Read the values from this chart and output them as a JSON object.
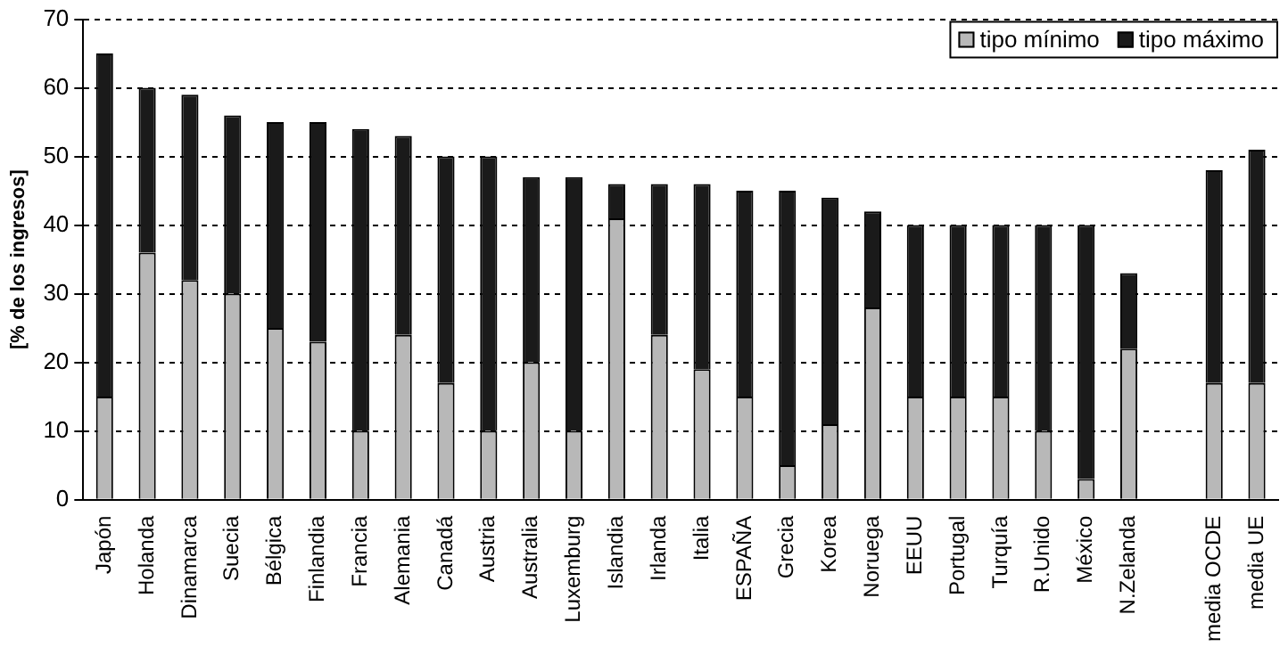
{
  "chart_data": {
    "type": "bar",
    "stacked": true,
    "ylabel": "[% de los ingresos]",
    "categories": [
      "Japón",
      "Holanda",
      "Dinamarca",
      "Suecia",
      "Bélgica",
      "Finlandia",
      "Francia",
      "Alemania",
      "Canadá",
      "Austria",
      "Australia",
      "Luxemburg",
      "Islandia",
      "Irlanda",
      "Italia",
      "ESPAÑA",
      "Grecia",
      "Korea",
      "Noruega",
      "EEUU",
      "Portugal",
      "Turquía",
      "R.Unido",
      "México",
      "N.Zelanda",
      null,
      "media OCDE",
      "media UE"
    ],
    "series": [
      {
        "name": "tipo mínimo",
        "color": "#b8b8b8",
        "values": [
          15,
          36,
          32,
          30,
          25,
          23,
          10,
          24,
          17,
          10,
          20,
          10,
          41,
          24,
          19,
          15,
          5,
          11,
          28,
          15,
          15,
          15,
          10,
          3,
          22,
          null,
          17,
          17
        ]
      },
      {
        "name": "tipo máximo",
        "color": "#1a1a1a",
        "values": [
          50,
          24,
          27,
          26,
          30,
          32,
          44,
          29,
          33,
          40,
          27,
          37,
          5,
          22,
          27,
          30,
          40,
          33,
          14,
          25,
          25,
          25,
          30,
          37,
          11,
          null,
          31,
          34
        ]
      }
    ],
    "ylim": [
      0,
      70
    ],
    "yticks": [
      0,
      10,
      20,
      30,
      40,
      50,
      60,
      70
    ],
    "grid": "y",
    "legend": "top right"
  }
}
